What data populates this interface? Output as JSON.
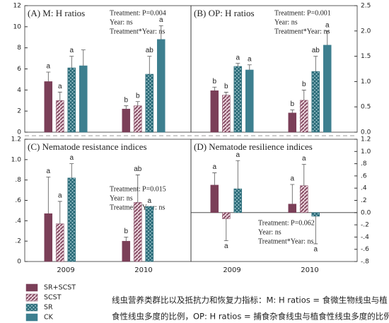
{
  "categories": [
    "2009",
    "2010"
  ],
  "chart_data": [
    {
      "type": "bar",
      "title": "(A) M: H ratios",
      "annotations": [
        "Treatment: P=0.004",
        "Year: ns",
        "Treatment*Year: ns"
      ],
      "ylim": [
        0,
        12
      ],
      "yticks": [
        0,
        2,
        4,
        6,
        8,
        10,
        12
      ],
      "yaxis_side": "left",
      "series": [
        {
          "name": "SR+SCST",
          "color": "#7b3f58",
          "pattern": "solid",
          "values": [
            4.8,
            2.2
          ],
          "errors": [
            0.9,
            0.3
          ],
          "letters": [
            "a",
            "b"
          ]
        },
        {
          "name": "SCST",
          "color": "#7b3f58",
          "pattern": "diagonal",
          "values": [
            3.0,
            2.5
          ],
          "errors": [
            0.8,
            0.4
          ],
          "letters": [
            "a",
            "b"
          ]
        },
        {
          "name": "SR",
          "color": "#2a6b78",
          "pattern": "cross",
          "values": [
            6.1,
            5.5
          ],
          "errors": [
            1.1,
            1.7
          ],
          "letters": [
            "a",
            "ab"
          ]
        },
        {
          "name": "CK",
          "color": "#3d7f8f",
          "pattern": "solid",
          "values": [
            6.3,
            8.8
          ],
          "errors": [
            1.5,
            1.3
          ],
          "letters": [
            null,
            "a"
          ]
        }
      ]
    },
    {
      "type": "bar",
      "title": "(B) OP: H ratios",
      "annotations": [
        "Treatment: P=0.001",
        "Year: ns",
        "Treatment*Year: ns"
      ],
      "ylim": [
        0,
        2.5
      ],
      "yaxis_side": "right",
      "yticks": [
        {
          "value": 0,
          "label": "0.0"
        },
        {
          "value": 0.5,
          "label": "0.5"
        },
        {
          "value": 1,
          "label": "1.0"
        },
        {
          "value": 1.5,
          "label": "1.5"
        },
        {
          "value": 2,
          "label": "2.0"
        },
        {
          "value": 2.5,
          "label": "2.5"
        }
      ],
      "series": [
        {
          "color": "#7b3f58",
          "pattern": "solid",
          "values": [
            0.82,
            0.38
          ],
          "errors": [
            0.07,
            0.06
          ],
          "letters": [
            "b",
            "b"
          ]
        },
        {
          "color": "#7b3f58",
          "pattern": "diagonal",
          "values": [
            0.73,
            0.63
          ],
          "errors": [
            0.06,
            0.2
          ],
          "letters": [
            "b",
            "b"
          ]
        },
        {
          "color": "#2a6b78",
          "pattern": "cross",
          "values": [
            1.3,
            1.2
          ],
          "errors": [
            0.06,
            0.3
          ],
          "letters": [
            "a",
            "ab"
          ]
        },
        {
          "color": "#3d7f8f",
          "pattern": "solid",
          "values": [
            1.23,
            1.72
          ],
          "errors": [
            0.1,
            0.28
          ],
          "letters": [
            "a",
            "a"
          ]
        }
      ]
    },
    {
      "type": "bar",
      "title": "(C) Nematode resistance indices",
      "annotations": [
        "Treatment: P=0.015",
        "Year: ns",
        "Treatment*Year: ns"
      ],
      "ylim": [
        0,
        1.2
      ],
      "yaxis_side": "left",
      "yticks": [
        0,
        {
          "value": 0.2,
          "label": ".2"
        },
        {
          "value": 0.4,
          "label": ".4"
        },
        {
          "value": 0.6,
          "label": ".6"
        },
        {
          "value": 0.8,
          "label": ".8"
        },
        {
          "value": 1,
          "label": "1.0"
        },
        {
          "value": 1.2,
          "label": "1.2"
        }
      ],
      "series": [
        {
          "color": "#7b3f58",
          "pattern": "solid",
          "values": [
            0.47,
            0.2
          ],
          "errors": [
            0.36,
            0.04
          ],
          "letters": [
            "a",
            "b"
          ]
        },
        {
          "color": "#7b3f58",
          "pattern": "diagonal",
          "values": [
            0.37,
            0.58
          ],
          "errors": [
            0.22,
            0.27
          ],
          "letters": [
            "a",
            "ab"
          ]
        },
        {
          "color": "#2a6b78",
          "pattern": "cross",
          "values": [
            0.82,
            0.54
          ],
          "errors": [
            0.14,
            null
          ],
          "letters": [
            "a",
            "a"
          ]
        },
        {
          "color": "#3d7f8f",
          "pattern": "solid",
          "values": [
            null,
            null
          ],
          "errors": [
            null,
            null
          ],
          "letters": [
            null,
            null
          ]
        }
      ]
    },
    {
      "type": "bar",
      "title": "(D) Nematode resilience indices",
      "annotations": [
        "Treatment: P=0.062",
        "Year: ns",
        "Treatment*Year: ns"
      ],
      "ylim": [
        -0.8,
        1.2
      ],
      "yaxis_side": "right",
      "yticks": [
        {
          "value": -0.8,
          "label": "-.8"
        },
        {
          "value": -0.6,
          "label": "-.6"
        },
        {
          "value": -0.4,
          "label": "-.4"
        },
        {
          "value": -0.2,
          "label": "-.2"
        },
        {
          "value": 0,
          "label": "0.0"
        },
        {
          "value": 0.2,
          "label": ".2"
        },
        {
          "value": 0.4,
          "label": ".4"
        },
        {
          "value": 0.6,
          "label": ".6"
        },
        {
          "value": 0.8,
          "label": ".8"
        },
        {
          "value": 1,
          "label": "1.0"
        },
        {
          "value": 1.2,
          "label": "1.2"
        }
      ],
      "series": [
        {
          "color": "#7b3f58",
          "pattern": "solid",
          "values": [
            0.45,
            0.14
          ],
          "errors": [
            0.2,
            0.32
          ],
          "letters": [
            "a",
            "a"
          ]
        },
        {
          "color": "#7b3f58",
          "pattern": "diagonal",
          "values": [
            -0.1,
            0.44
          ],
          "errors": [
            0.36,
            0.35
          ],
          "letters": [
            "a",
            "a"
          ]
        },
        {
          "color": "#2a6b78",
          "pattern": "cross",
          "values": [
            0.39,
            -0.06
          ],
          "errors": [
            0.46,
            0.45
          ],
          "letters": [
            "a",
            "a"
          ]
        },
        {
          "color": "#3d7f8f",
          "pattern": "solid",
          "values": [
            null,
            null
          ],
          "errors": [
            null,
            null
          ],
          "letters": [
            null,
            null
          ]
        }
      ]
    }
  ],
  "caption": [
    "线虫营养类群比以及抵抗力和恢复力指标：M: H ratios = 食微生物线虫与植",
    "食性线虫多度的比例，OP: H ratios = 捕食杂食线虫与植食性线虫多度的比例。"
  ]
}
